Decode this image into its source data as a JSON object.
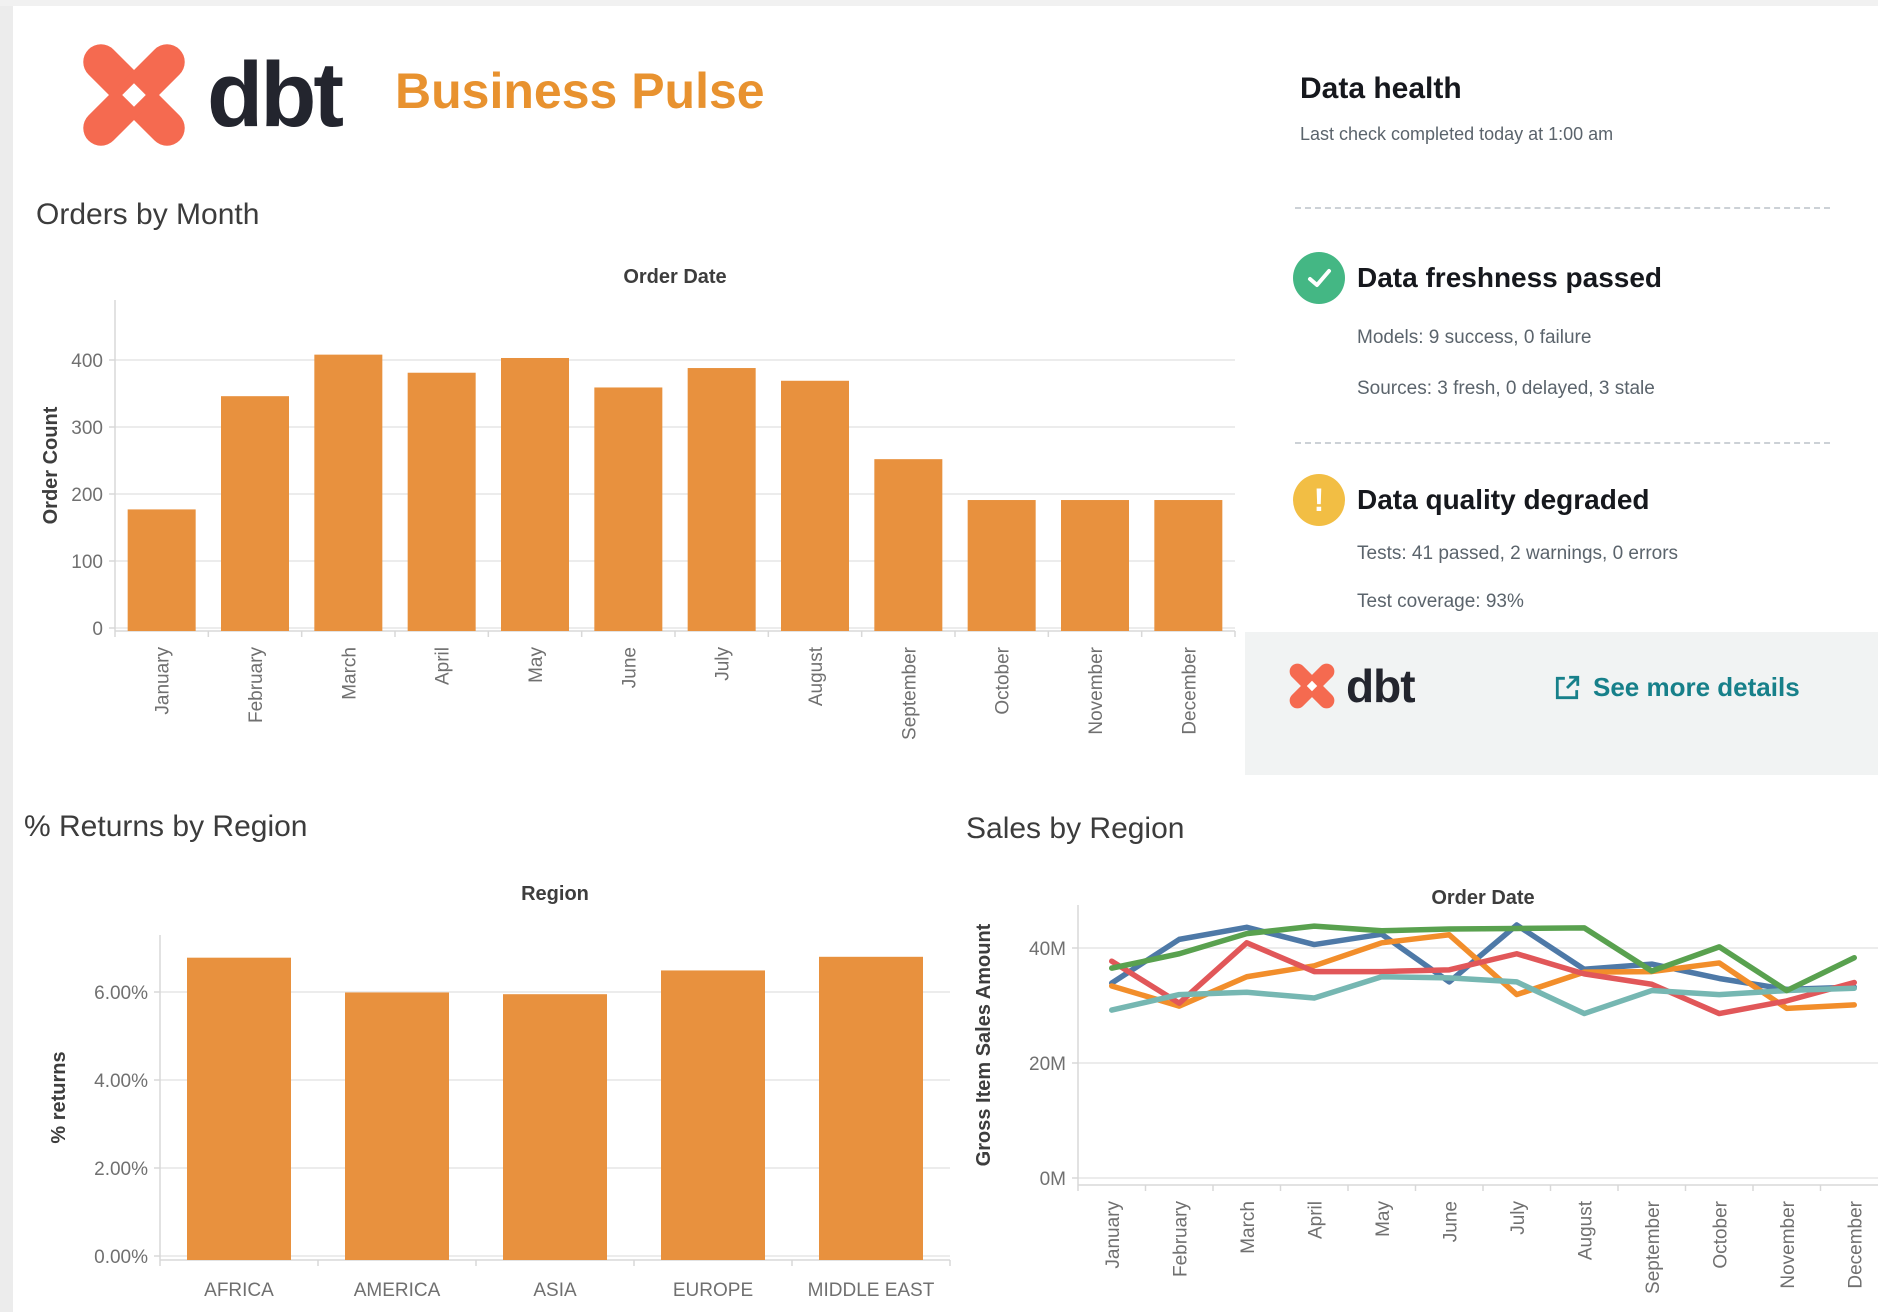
{
  "header": {
    "brand": "dbt",
    "title": "Business Pulse"
  },
  "colors": {
    "accent_orange": "#e8922f",
    "bar_orange": "#e8913e",
    "brand_coral": "#f56a50",
    "brand_navy": "#23252e",
    "success_green": "#44b784",
    "warning_yellow": "#f2be44",
    "link_teal": "#17808a"
  },
  "data_health": {
    "title": "Data health",
    "subtitle": "Last check completed today at 1:00 am",
    "freshness": {
      "icon": "check-icon",
      "title": "Data freshness passed",
      "lines": [
        "Models: 9 success, 0 failure",
        "Sources: 3 fresh, 0 delayed, 3 stale"
      ]
    },
    "quality": {
      "icon": "warning-icon",
      "title": "Data quality degraded",
      "lines": [
        "Tests: 41 passed, 2 warnings, 0 errors",
        "Test coverage: 93%"
      ]
    },
    "footer": {
      "brand": "dbt",
      "link_label": "See more details",
      "link_icon": "external-link-icon"
    }
  },
  "chart_data": [
    {
      "id": "orders_by_month",
      "type": "bar",
      "title": "Orders by Month",
      "axis_header": "Order Date",
      "ylabel": "Order Count",
      "categories": [
        "January",
        "February",
        "March",
        "April",
        "May",
        "June",
        "July",
        "August",
        "September",
        "October",
        "November",
        "December"
      ],
      "values": [
        177,
        346,
        408,
        381,
        403,
        359,
        388,
        369,
        252,
        191,
        191,
        191
      ],
      "bar_color": "#e8913e",
      "ytick_values": [
        0,
        100,
        200,
        300,
        400
      ],
      "ytick_labels": [
        "0",
        "100",
        "200",
        "300",
        "400"
      ],
      "ylim": [
        0,
        430
      ],
      "grid": true,
      "legend": "none"
    },
    {
      "id": "returns_by_region",
      "type": "bar",
      "title": "% Returns by Region",
      "axis_header": "Region",
      "ylabel": "% returns",
      "categories": [
        "AFRICA",
        "AMERICA",
        "ASIA",
        "EUROPE",
        "MIDDLE EAST"
      ],
      "values": [
        6.78,
        5.99,
        5.95,
        6.49,
        6.8
      ],
      "bar_color": "#e8913e",
      "ytick_values": [
        0,
        2,
        4,
        6
      ],
      "ytick_labels": [
        "0.00%",
        "2.00%",
        "4.00%",
        "6.00%"
      ],
      "ylim": [
        0,
        7.4
      ],
      "grid": true,
      "legend": "none"
    },
    {
      "id": "sales_by_region",
      "type": "line",
      "title": "Sales by Region",
      "axis_header": "Order Date",
      "ylabel": "Gross Item Sales Amount",
      "x": [
        "January",
        "February",
        "March",
        "April",
        "May",
        "June",
        "July",
        "August",
        "September",
        "October",
        "November",
        "December"
      ],
      "series": [
        {
          "name": "blue",
          "color": "#4e79a7",
          "values": [
            33.9,
            41.5,
            43.6,
            40.6,
            42.4,
            34.1,
            44.0,
            36.3,
            37.2,
            34.7,
            32.8,
            33.2
          ]
        },
        {
          "name": "orange",
          "color": "#f28e2b",
          "values": [
            33.4,
            29.9,
            35.0,
            36.9,
            40.9,
            42.3,
            31.9,
            35.8,
            35.9,
            37.4,
            29.5,
            30.1
          ]
        },
        {
          "name": "red",
          "color": "#e15759",
          "values": [
            37.7,
            30.4,
            40.9,
            35.9,
            35.9,
            36.2,
            39.0,
            35.5,
            33.7,
            28.6,
            30.8,
            34.0
          ]
        },
        {
          "name": "teal",
          "color": "#76b7b2",
          "values": [
            29.2,
            31.9,
            32.3,
            31.3,
            35.0,
            34.8,
            34.1,
            28.6,
            32.6,
            31.9,
            32.6,
            33.0
          ]
        },
        {
          "name": "green",
          "color": "#59a14f",
          "values": [
            36.5,
            39.0,
            42.5,
            43.8,
            43.0,
            43.3,
            43.4,
            43.5,
            36.0,
            40.2,
            32.6,
            38.3
          ]
        }
      ],
      "ytick_values": [
        0,
        20,
        40
      ],
      "ytick_labels": [
        "0M",
        "20M",
        "40M"
      ],
      "ylim": [
        0,
        47.5
      ],
      "grid": true,
      "legend": "none"
    }
  ]
}
